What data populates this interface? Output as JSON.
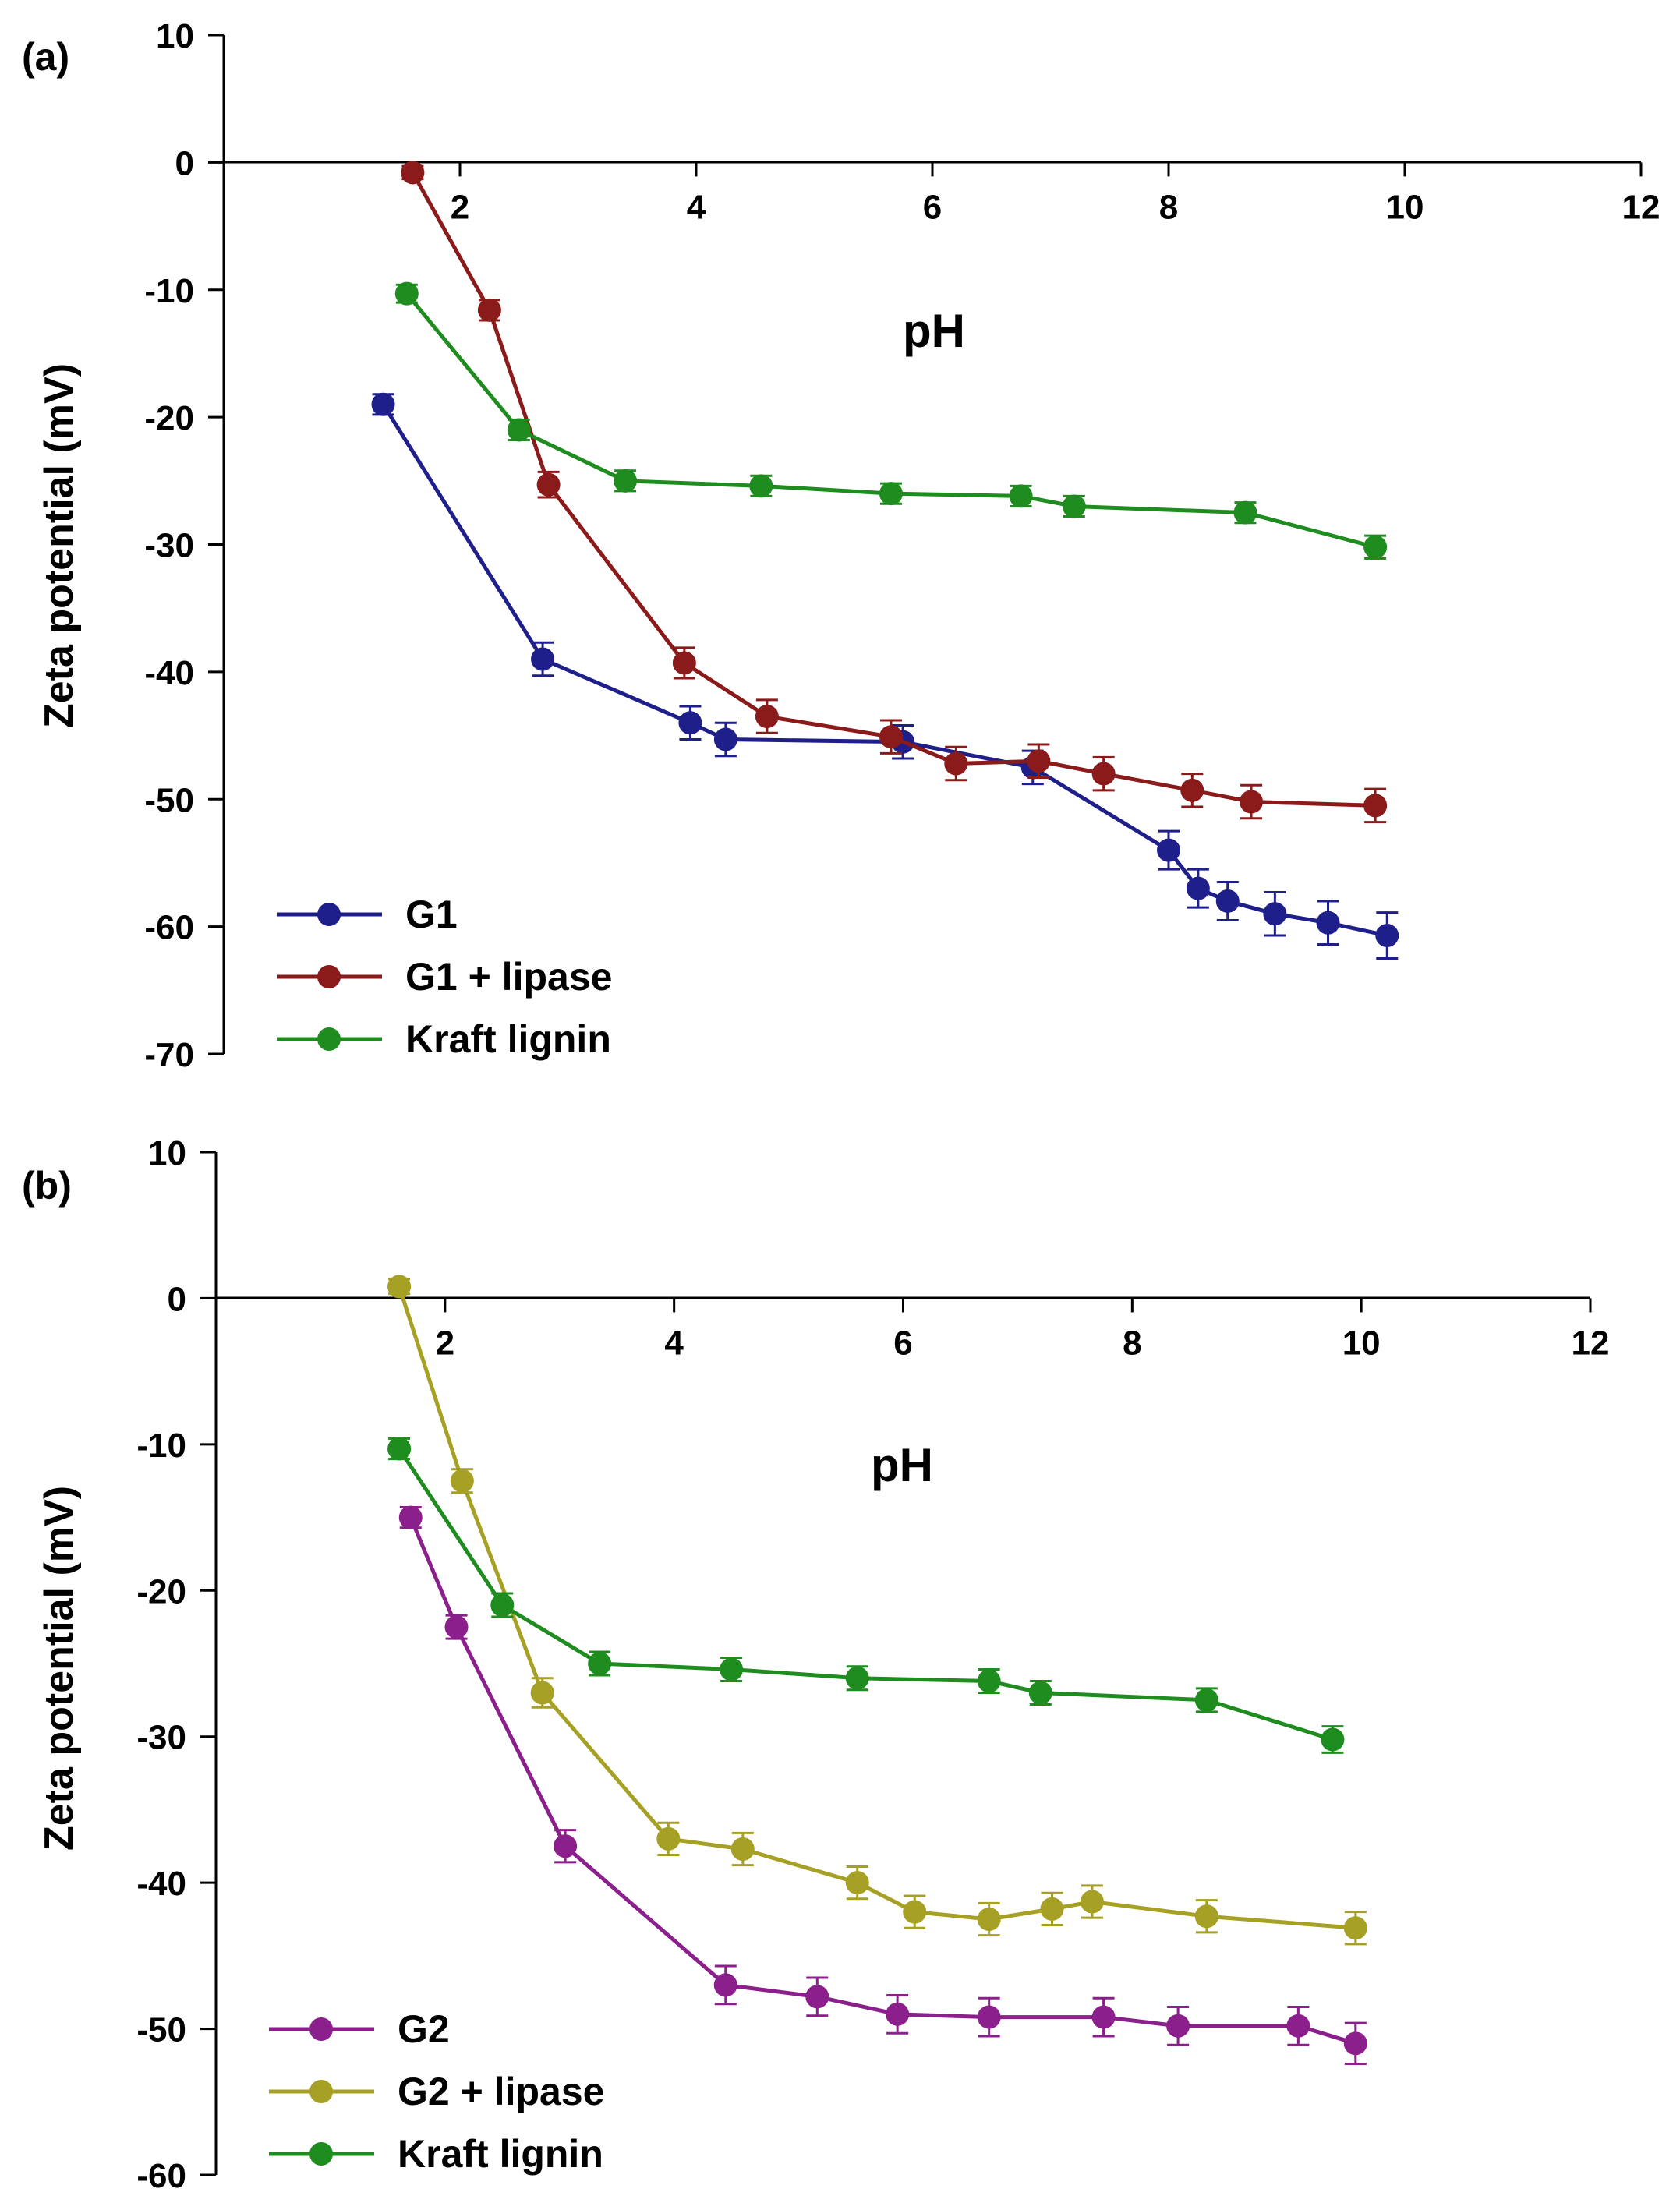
{
  "chart_data": [
    {
      "type": "line",
      "panel_label": "(a)",
      "xlabel": "pH",
      "ylabel": "Zeta potential (mV)",
      "xlim": [
        0,
        12
      ],
      "ylim": [
        -70,
        10
      ],
      "x_ticks": [
        "2",
        "4",
        "6",
        "8",
        "10",
        "12"
      ],
      "y_ticks": [
        "10",
        "0",
        "-10",
        "-20",
        "-30",
        "-40",
        "-50",
        "-60",
        "-70"
      ],
      "legend_position": "bottom-left",
      "series": [
        {
          "name": "G1",
          "color": "#1f1f8c",
          "x": [
            1.35,
            2.7,
            3.95,
            4.25,
            5.75,
            6.85,
            8.0,
            8.25,
            8.5,
            8.9,
            9.35,
            9.85
          ],
          "y": [
            -19,
            -39,
            -44,
            -45.3,
            -45.5,
            -47.5,
            -54,
            -57,
            -58,
            -59,
            -59.7,
            -60.7
          ],
          "err": [
            0.8,
            1.3,
            1.3,
            1.3,
            1.3,
            1.3,
            1.5,
            1.5,
            1.5,
            1.7,
            1.7,
            1.8
          ]
        },
        {
          "name": "G1 + lipase",
          "color": "#8b1a1a",
          "x": [
            1.6,
            2.25,
            2.75,
            3.9,
            4.6,
            5.65,
            6.2,
            6.9,
            7.45,
            8.2,
            8.7,
            9.75
          ],
          "y": [
            -0.8,
            -11.6,
            -25.3,
            -39.3,
            -43.5,
            -45.1,
            -47.2,
            -47,
            -48,
            -49.3,
            -50.2,
            -50.5
          ],
          "err": [
            0.5,
            0.8,
            1.0,
            1.2,
            1.3,
            1.3,
            1.3,
            1.3,
            1.3,
            1.3,
            1.3,
            1.3
          ]
        },
        {
          "name": "Kraft lignin",
          "color": "#1e8c1e",
          "x": [
            1.55,
            2.5,
            3.4,
            4.55,
            5.65,
            6.75,
            7.2,
            8.65,
            9.75
          ],
          "y": [
            -10.3,
            -21,
            -25,
            -25.4,
            -26,
            -26.2,
            -27,
            -27.5,
            -30.2
          ],
          "err": [
            0.7,
            0.8,
            0.8,
            0.8,
            0.8,
            0.8,
            0.8,
            0.8,
            0.9
          ]
        }
      ]
    },
    {
      "type": "line",
      "panel_label": "(b)",
      "xlabel": "pH",
      "ylabel": "Zeta potential (mV)",
      "xlim": [
        0,
        12
      ],
      "ylim": [
        -60,
        10
      ],
      "x_ticks": [
        "2",
        "4",
        "6",
        "8",
        "10",
        "12"
      ],
      "y_ticks": [
        "10",
        "0",
        "-10",
        "-20",
        "-30",
        "-40",
        "-50",
        "-60"
      ],
      "legend_position": "bottom-left",
      "series": [
        {
          "name": "G2",
          "color": "#8b1f8b",
          "x": [
            1.7,
            2.1,
            3.05,
            4.45,
            5.25,
            5.95,
            6.75,
            7.75,
            8.4,
            9.45,
            9.95
          ],
          "y": [
            -15,
            -22.5,
            -37.5,
            -47,
            -47.8,
            -49,
            -49.2,
            -49.2,
            -49.8,
            -49.8,
            -51
          ],
          "err": [
            0.7,
            0.8,
            1.1,
            1.3,
            1.3,
            1.3,
            1.3,
            1.3,
            1.3,
            1.3,
            1.4
          ]
        },
        {
          "name": "G2 + lipase",
          "color": "#a6a024",
          "x": [
            1.6,
            2.15,
            2.85,
            3.95,
            4.6,
            5.6,
            6.1,
            6.75,
            7.3,
            7.65,
            8.65,
            9.95
          ],
          "y": [
            0.8,
            -12.5,
            -27,
            -37,
            -37.7,
            -40,
            -42,
            -42.5,
            -41.8,
            -41.3,
            -42.3,
            -43.1
          ],
          "err": [
            0.5,
            0.8,
            1.0,
            1.1,
            1.1,
            1.1,
            1.1,
            1.1,
            1.1,
            1.1,
            1.1,
            1.1
          ]
        },
        {
          "name": "Kraft lignin",
          "color": "#1e8c1e",
          "x": [
            1.6,
            2.5,
            3.35,
            4.5,
            5.6,
            6.75,
            7.2,
            8.65,
            9.75
          ],
          "y": [
            -10.3,
            -21,
            -25,
            -25.4,
            -26,
            -26.2,
            -27,
            -27.5,
            -30.2
          ],
          "err": [
            0.7,
            0.8,
            0.8,
            0.8,
            0.8,
            0.8,
            0.8,
            0.8,
            0.9
          ]
        }
      ]
    }
  ]
}
